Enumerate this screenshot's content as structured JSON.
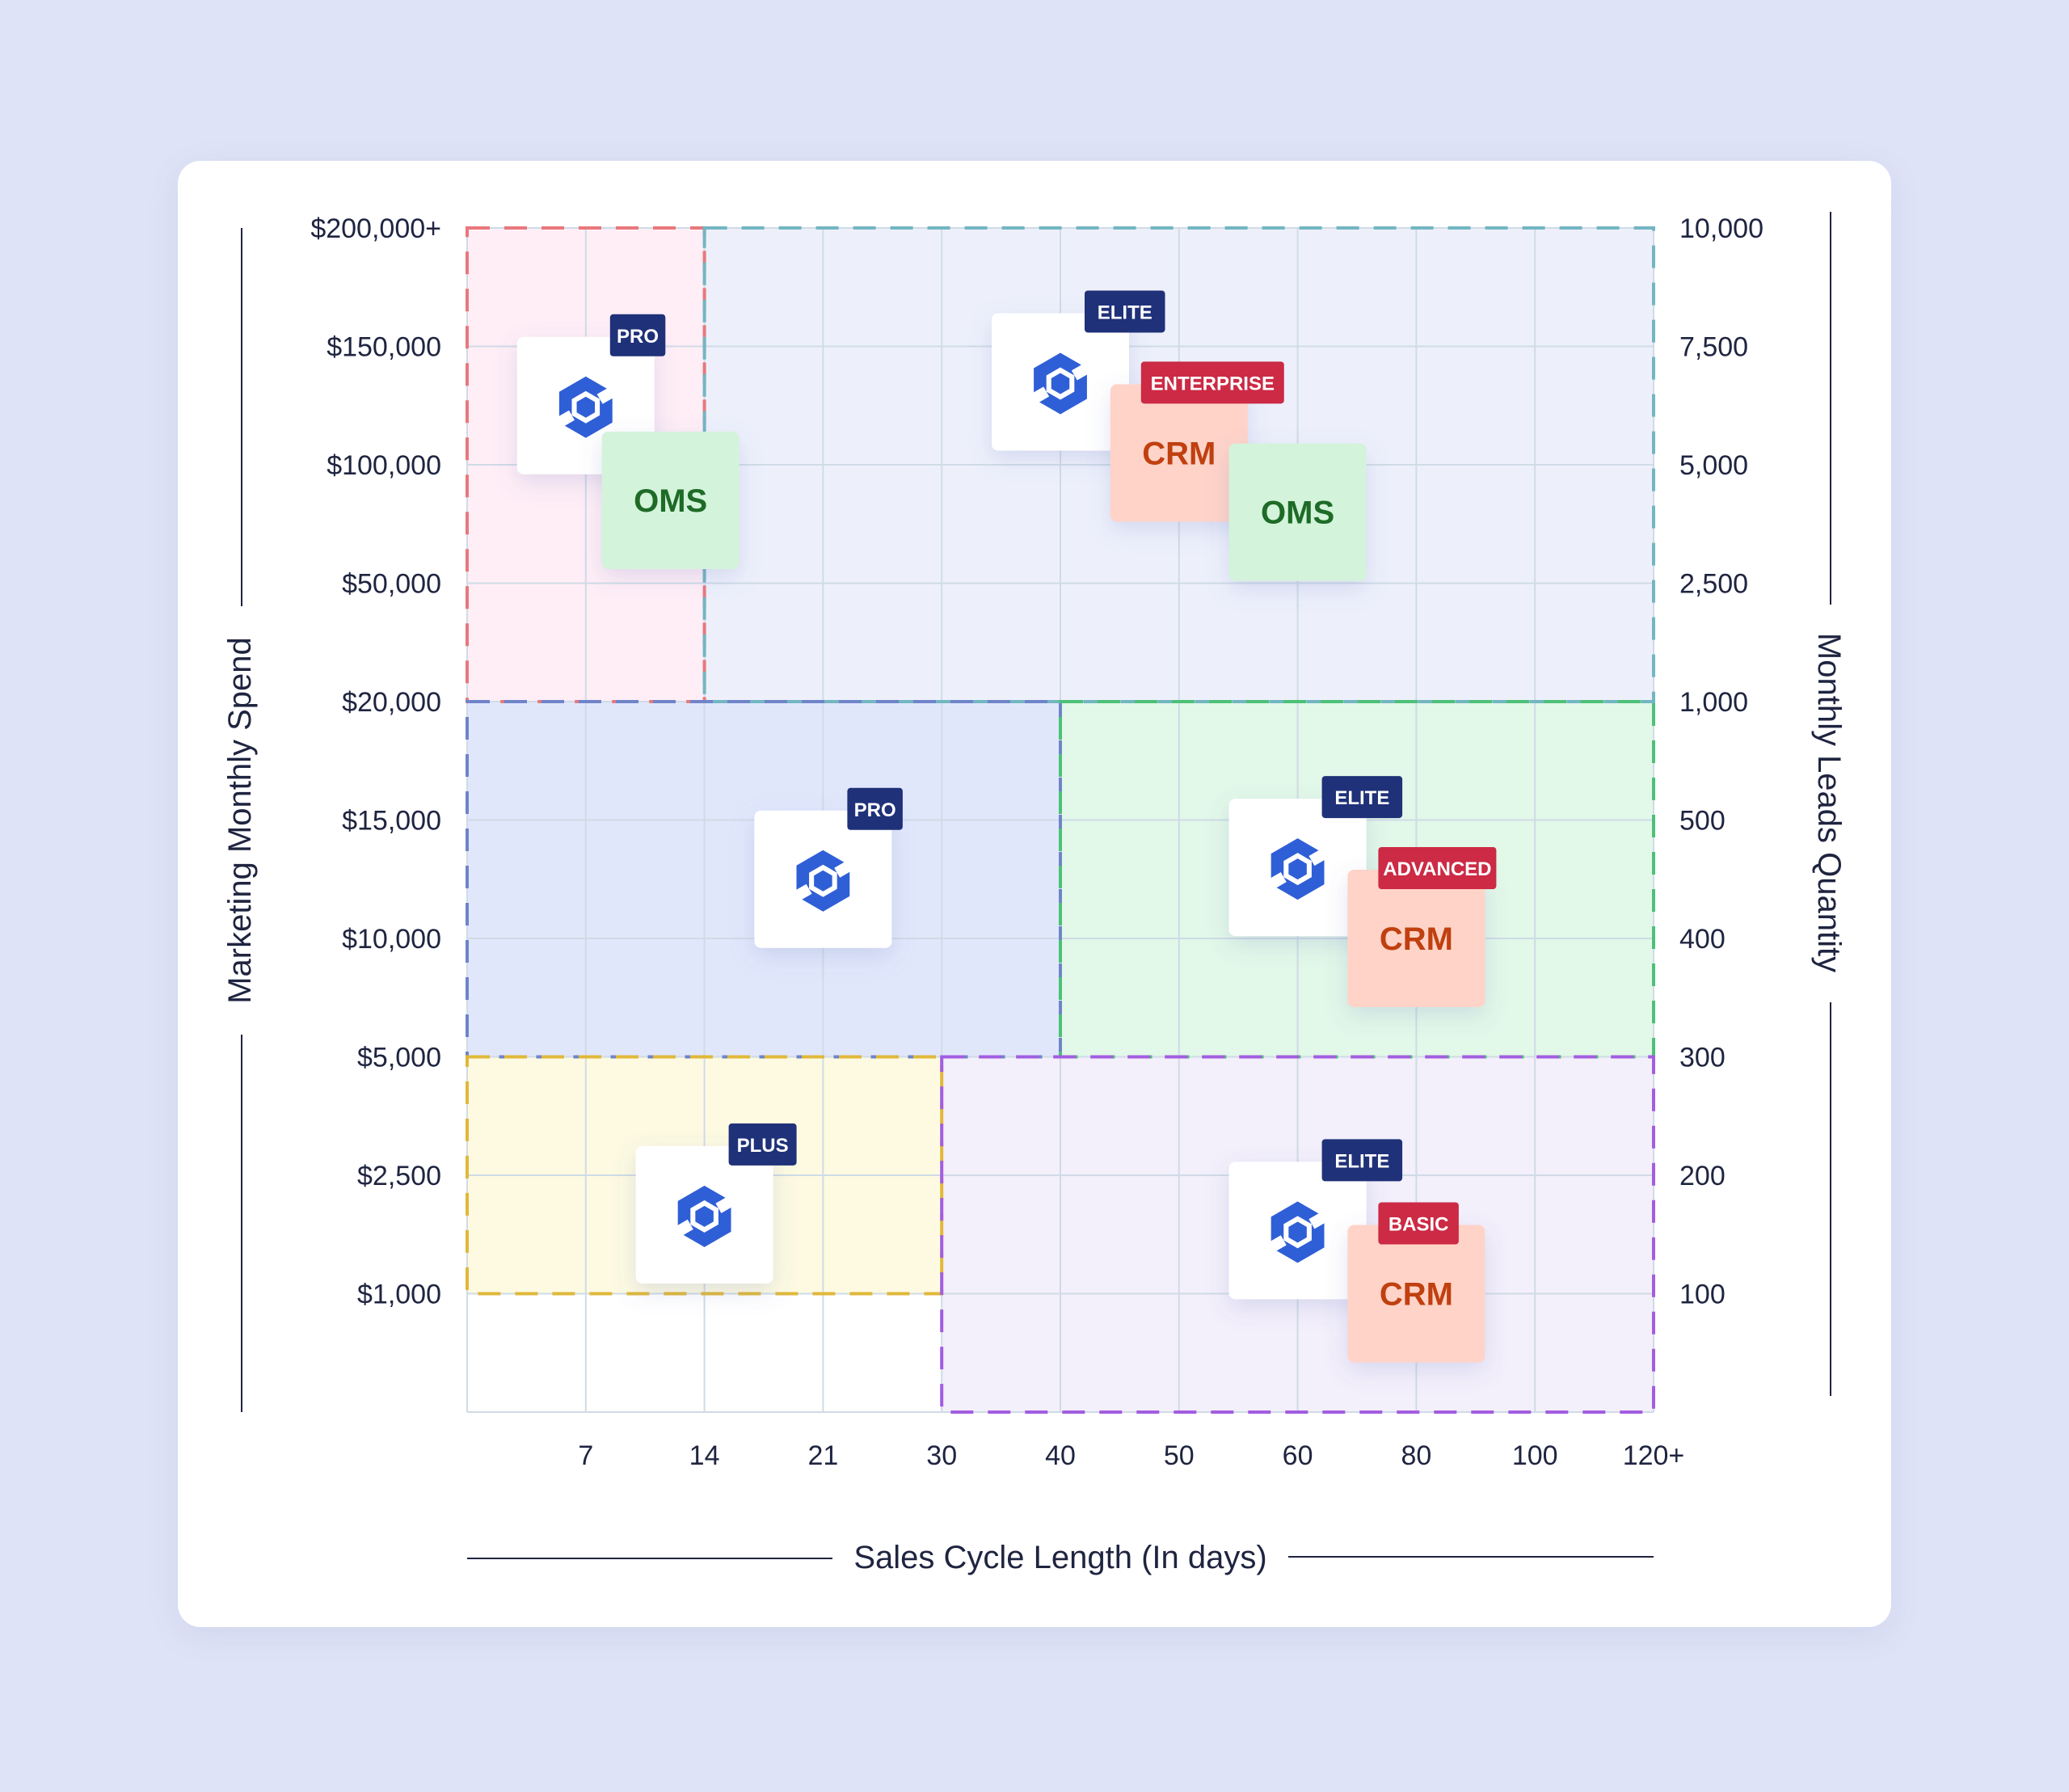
{
  "colors": {
    "background": "#dfe3f7",
    "card": "#ffffff",
    "grid": "#cfdbe6",
    "axis_text": "#1f2440",
    "badge_navy": "#1f3178",
    "badge_red": "#cc2a45",
    "logo_blue": "#2f5fd6",
    "crm_fill": "#ffd3c8",
    "crm_text": "#c0400f",
    "oms_fill": "#d3f3da",
    "oms_text": "#1e6b27"
  },
  "chart_data": {
    "type": "matrix",
    "x_axis": {
      "label": "Sales Cycle Length (In days)",
      "ticks": [
        "7",
        "14",
        "21",
        "30",
        "40",
        "50",
        "60",
        "80",
        "100",
        "120+"
      ]
    },
    "y_axis_left": {
      "label": "Marketing Monthly Spend",
      "ticks": [
        "$200,000+",
        "$150,000",
        "$100,000",
        "$50,000",
        "$20,000",
        "$15,000",
        "$10,000",
        "$5,000",
        "$2,500",
        "$1,000"
      ]
    },
    "y_axis_right": {
      "label": "Monthly Leads Quantity",
      "ticks": [
        "10,000",
        "7,500",
        "5,000",
        "2,500",
        "1,000",
        "500",
        "400",
        "300",
        "200",
        "100"
      ]
    },
    "zones": [
      {
        "id": "top-left",
        "x_from": "0",
        "x_to": "14",
        "y_from": "$20,000",
        "y_to": "$200,000+",
        "fill": "#ffeef6",
        "border": "#e8787c",
        "items": [
          {
            "kind": "logo",
            "badge": "PRO",
            "badge_color": "#1f3178",
            "x": "7",
            "y": "$125,000"
          },
          {
            "kind": "product",
            "text": "OMS",
            "x": "12",
            "y": "$85,000"
          }
        ]
      },
      {
        "id": "top-right",
        "x_from": "14",
        "x_to": "120+",
        "y_from": "$20,000",
        "y_to": "$200,000+",
        "fill": "#edf0fb",
        "border": "#72b6c2",
        "items": [
          {
            "kind": "logo",
            "badge": "ELITE",
            "badge_color": "#1f3178",
            "x": "40",
            "y": "$135,000"
          },
          {
            "kind": "product",
            "text": "CRM",
            "badge": "ENTERPRISE",
            "badge_color": "#cc2a45",
            "x": "50",
            "y": "$105,000"
          },
          {
            "kind": "product",
            "text": "OMS",
            "x": "60",
            "y": "$80,000"
          }
        ]
      },
      {
        "id": "middle-left",
        "x_from": "0",
        "x_to": "40",
        "y_from": "$5,000",
        "y_to": "$20,000",
        "fill": "#e1e7fb",
        "border": "#6f84c9",
        "items": [
          {
            "kind": "logo",
            "badge": "PRO",
            "badge_color": "#1f3178",
            "x": "21",
            "y": "$12,500"
          }
        ]
      },
      {
        "id": "middle-right",
        "x_from": "40",
        "x_to": "120+",
        "y_from": "$5,000",
        "y_to": "$20,000",
        "fill": "#e2f8e8",
        "border": "#4cc177",
        "items": [
          {
            "kind": "logo",
            "badge": "ELITE",
            "badge_color": "#1f3178",
            "x": "60",
            "y": "$13,000"
          },
          {
            "kind": "product",
            "text": "CRM",
            "badge": "ADVANCED",
            "badge_color": "#cc2a45",
            "x": "80",
            "y": "$10,000"
          }
        ]
      },
      {
        "id": "bottom-left",
        "x_from": "0",
        "x_to": "30",
        "y_from": "$1,000",
        "y_to": "$5,000",
        "fill": "#fdfae1",
        "border": "#e0b83a",
        "items": [
          {
            "kind": "logo",
            "badge": "PLUS",
            "badge_color": "#1f3178",
            "x": "14",
            "y": "$2,000"
          }
        ]
      },
      {
        "id": "bottom-right",
        "x_from": "30",
        "x_to": "120+",
        "y_from": "0",
        "y_to": "$5,000",
        "fill": "#f3effb",
        "border": "#a35de0",
        "items": [
          {
            "kind": "logo",
            "badge": "ELITE",
            "badge_color": "#1f3178",
            "x": "60",
            "y": "$1,800"
          },
          {
            "kind": "product",
            "text": "CRM",
            "badge": "BASIC",
            "badge_color": "#cc2a45",
            "x": "80",
            "y": "$1,000"
          }
        ]
      }
    ]
  }
}
